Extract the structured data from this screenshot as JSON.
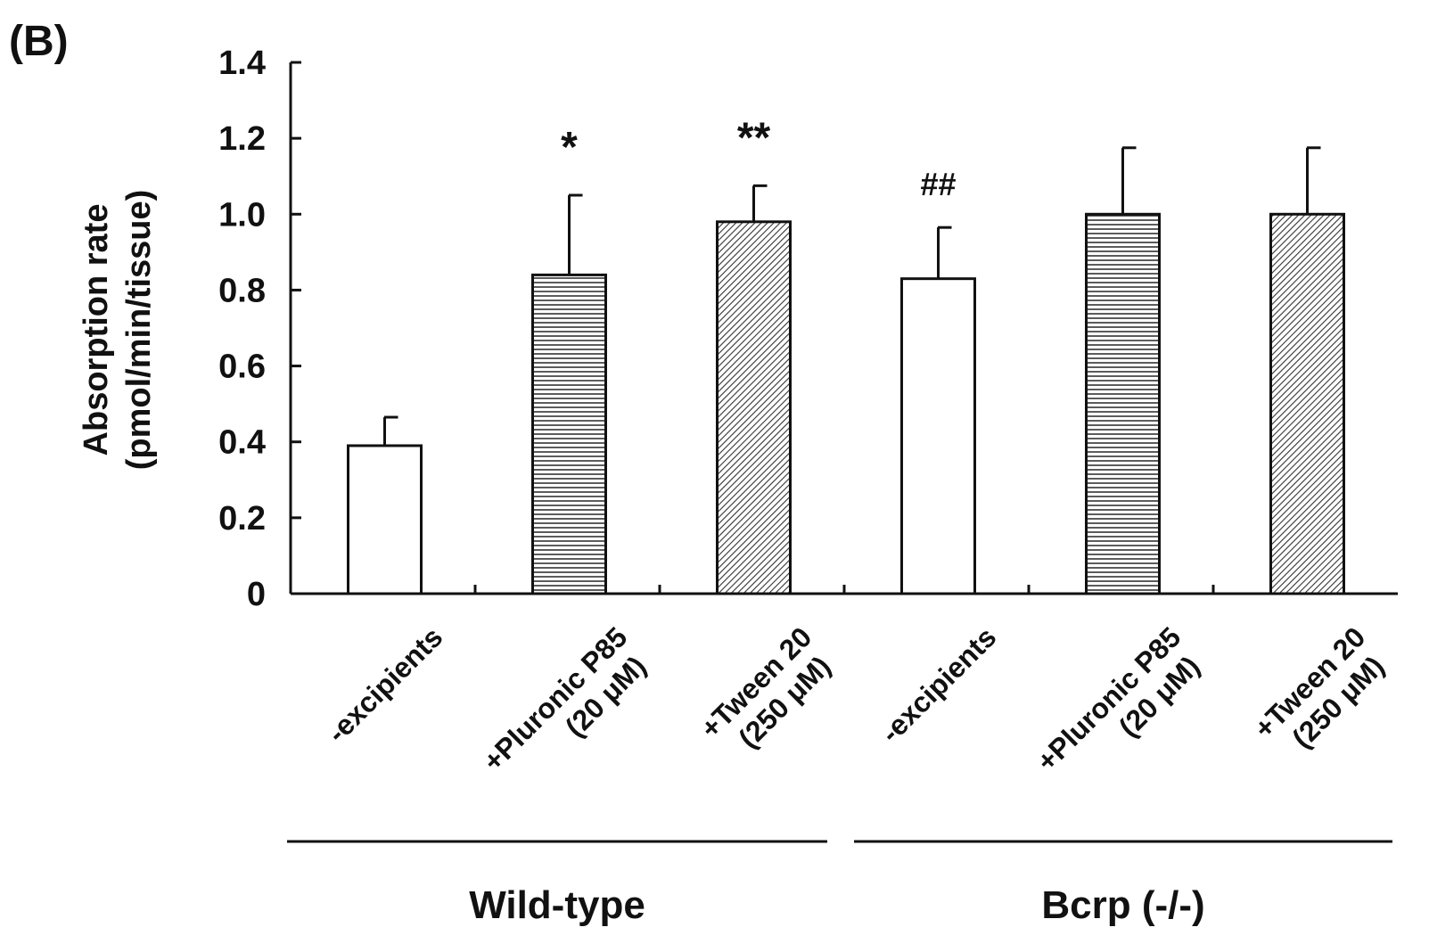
{
  "panel_label": "(B)",
  "colors": {
    "axis": "#111111",
    "bar_fill": "#ffffff",
    "pattern": "#333333"
  },
  "chart_data": {
    "type": "bar",
    "title": "",
    "ylabel_line1": "Absorption rate",
    "ylabel_line2": "(pmol/min/tissue)",
    "ylim": [
      0,
      1.4
    ],
    "yticks": [
      0,
      0.2,
      0.4,
      0.6,
      0.8,
      1.0,
      1.2,
      1.4
    ],
    "ytick_labels": [
      "0",
      "0.2",
      "0.4",
      "0.6",
      "0.8",
      "1.0",
      "1.2",
      "1.4"
    ],
    "grid": false,
    "bars": [
      {
        "label1": "-excipients",
        "label2": "",
        "value": 0.39,
        "error": 0.075,
        "pattern": "none",
        "annotation": ""
      },
      {
        "label1": "+Pluronic P85",
        "label2": "(20 μM)",
        "value": 0.84,
        "error": 0.21,
        "pattern": "horizontal",
        "annotation": "*"
      },
      {
        "label1": "+Tween 20",
        "label2": "(250 μM)",
        "value": 0.98,
        "error": 0.095,
        "pattern": "diagonal",
        "annotation": "**"
      },
      {
        "label1": "-excipients",
        "label2": "",
        "value": 0.83,
        "error": 0.135,
        "pattern": "none",
        "annotation": "##"
      },
      {
        "label1": "+Pluronic P85",
        "label2": "(20 μM)",
        "value": 1.0,
        "error": 0.175,
        "pattern": "horizontal",
        "annotation": ""
      },
      {
        "label1": "+Tween 20",
        "label2": "(250 μM)",
        "value": 1.0,
        "error": 0.175,
        "pattern": "diagonal",
        "annotation": ""
      }
    ],
    "groups": [
      {
        "name": "Wild-type",
        "bars": [
          0,
          1,
          2
        ]
      },
      {
        "name": "Bcrp (-/-)",
        "bars": [
          3,
          4,
          5
        ]
      }
    ]
  }
}
